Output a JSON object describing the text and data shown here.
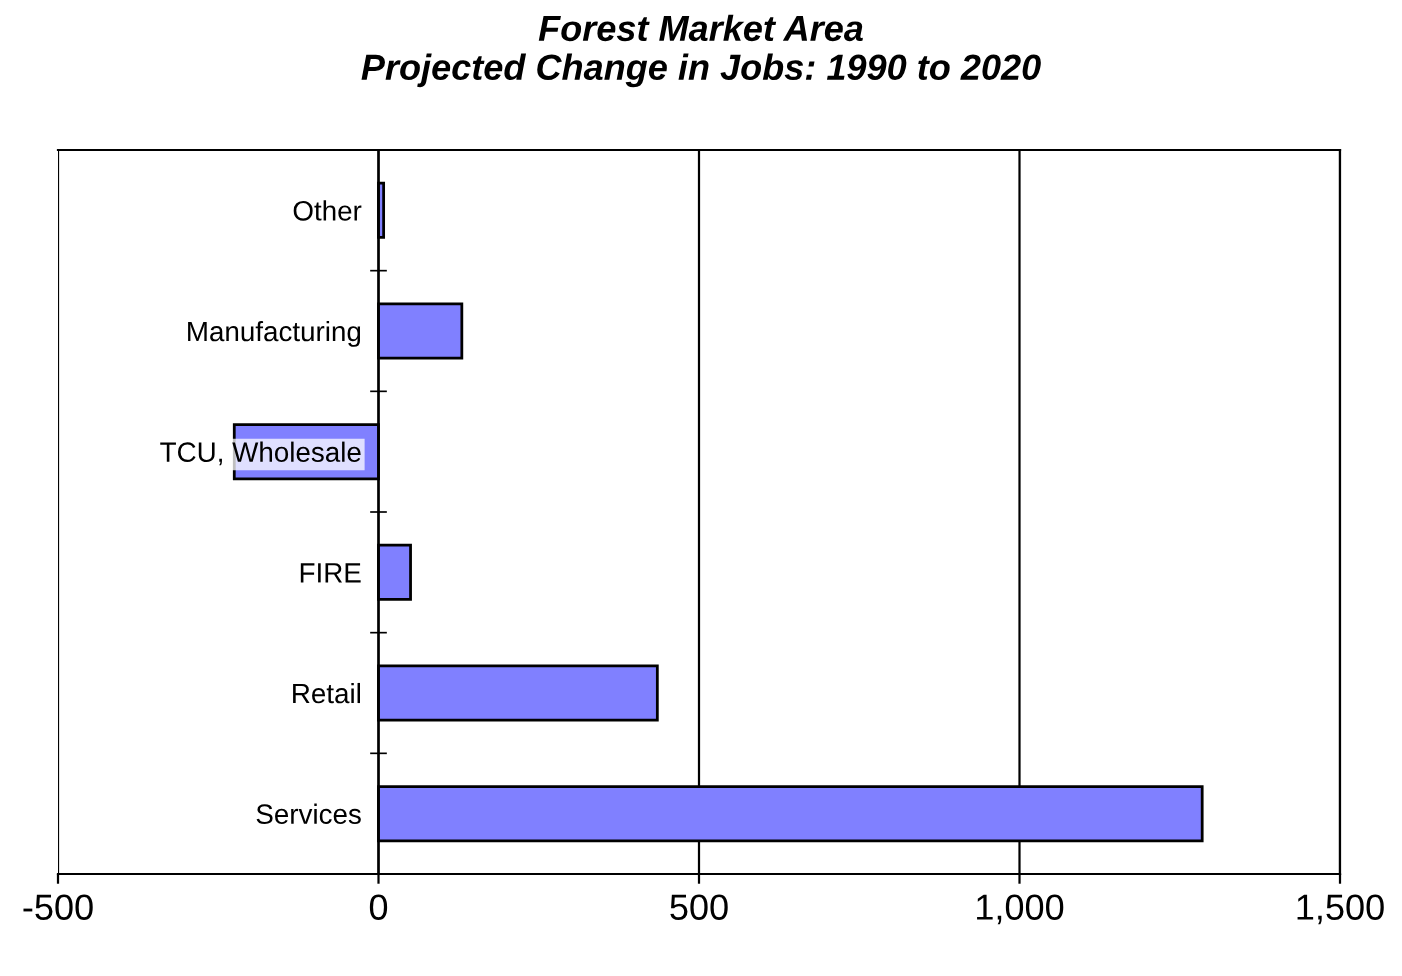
{
  "chart_data": {
    "type": "bar",
    "orientation": "horizontal",
    "title": "Forest Market Area\nProjected Change in Jobs: 1990 to 2020",
    "categories": [
      "Other",
      "Manufacturing",
      "TCU, Wholesale",
      "FIRE",
      "Retail",
      "Services"
    ],
    "values": [
      8,
      130,
      -225,
      50,
      435,
      1285
    ],
    "color": "#8080ff",
    "xlim": [
      -500,
      1500
    ],
    "xticks": [
      {
        "value": -500,
        "label": "-500"
      },
      0,
      500,
      {
        "value": 1000,
        "label": "1,000"
      },
      {
        "value": 1500,
        "label": "1,500"
      }
    ],
    "grid": "x",
    "legend": false
  }
}
